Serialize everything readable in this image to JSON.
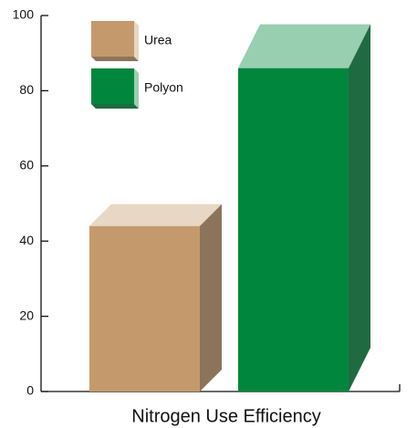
{
  "chart_data": {
    "type": "bar3d",
    "x_label": "Nitrogen Use Efficiency",
    "categories": [
      null
    ],
    "series": [
      {
        "name": "Urea",
        "color": "#c49a6c",
        "values": [
          44
        ]
      },
      {
        "name": "Polyon",
        "color": "#00873d",
        "values": [
          86
        ]
      }
    ],
    "ylim": [
      0,
      100
    ],
    "yticks": [
      0,
      20,
      40,
      60,
      80,
      100
    ],
    "legend": "top-left"
  }
}
